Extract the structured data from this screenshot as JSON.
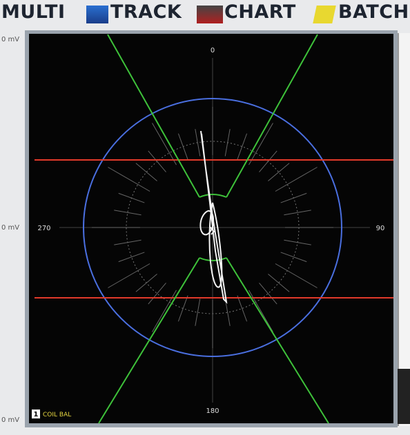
{
  "tabs": [
    "MULTI",
    "TRACK",
    "CHART",
    "BATCH"
  ],
  "axis_labels": {
    "top": "0 mV",
    "middle": "0 mV",
    "bottom": "0 mV"
  },
  "angles": {
    "top": "0",
    "right": "90",
    "bottom": "180",
    "left": "270"
  },
  "channel": {
    "number": "1",
    "name": "COIL BAL"
  }
}
